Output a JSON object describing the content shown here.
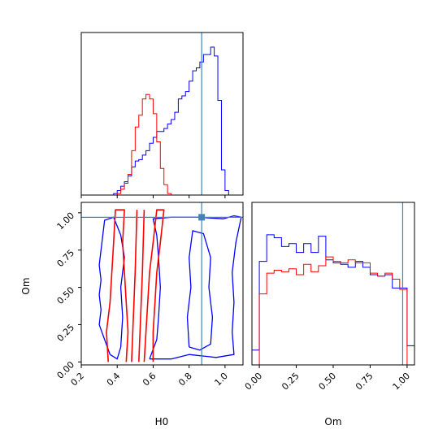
{
  "chart_data": {
    "type": "corner",
    "parameters": [
      "H0",
      "Om"
    ],
    "truth": {
      "H0": 0.87,
      "Om": 0.97
    },
    "colors": {
      "blue": "#0000ff",
      "red": "#ff0000",
      "truth": "#4682b4"
    },
    "series": [
      {
        "color": "blue"
      },
      {
        "color": "red"
      }
    ],
    "panels": [
      {
        "id": "hist-H0",
        "type": "histogram",
        "xlim": [
          0.2,
          1.1
        ],
        "ylim": [
          0,
          1
        ],
        "x_ticks": [
          0.2,
          0.4,
          0.6,
          0.8,
          1.0
        ],
        "x_tick_labels_visible": false,
        "truth_x": 0.87,
        "bin_edges": [
          0.2,
          0.22,
          0.24,
          0.26,
          0.28,
          0.3,
          0.32,
          0.34,
          0.36,
          0.38,
          0.4,
          0.42,
          0.44,
          0.46,
          0.48,
          0.5,
          0.52,
          0.54,
          0.56,
          0.58,
          0.6,
          0.62,
          0.64,
          0.66,
          0.68,
          0.7,
          0.72,
          0.74,
          0.76,
          0.78,
          0.8,
          0.82,
          0.84,
          0.86,
          0.88,
          0.9,
          0.92,
          0.94,
          0.96,
          0.98,
          1.0,
          1.02,
          1.04,
          1.06,
          1.08,
          1.1
        ],
        "series": [
          {
            "color": "blue",
            "values": [
              0.0,
              0.0,
              0.0,
              0.0,
              0.0,
              0.0,
              0.0,
              0.0,
              0.0,
              0.01,
              0.03,
              0.06,
              0.09,
              0.13,
              0.19,
              0.23,
              0.24,
              0.27,
              0.3,
              0.35,
              0.39,
              0.43,
              0.43,
              0.45,
              0.48,
              0.51,
              0.56,
              0.65,
              0.67,
              0.7,
              0.77,
              0.84,
              0.86,
              0.9,
              0.95,
              0.95,
              1.0,
              0.94,
              0.64,
              0.17,
              0.03,
              0.0,
              0.0,
              0.0,
              0.0
            ]
          },
          {
            "color": "red",
            "values": [
              0.0,
              0.0,
              0.0,
              0.0,
              0.0,
              0.0,
              0.0,
              0.0,
              0.0,
              0.0,
              0.01,
              0.04,
              0.08,
              0.14,
              0.3,
              0.46,
              0.54,
              0.65,
              0.68,
              0.65,
              0.55,
              0.36,
              0.18,
              0.07,
              0.01,
              0.0,
              0.0,
              0.0,
              0.0,
              0.0,
              0.0,
              0.0,
              0.0,
              0.0,
              0.0,
              0.0,
              0.0,
              0.0,
              0.0,
              0.0,
              0.0,
              0.0,
              0.0,
              0.0,
              0.0
            ]
          }
        ]
      },
      {
        "id": "hist-Om",
        "type": "histogram",
        "xlim": [
          -0.05,
          1.05
        ],
        "ylim": [
          0,
          1
        ],
        "x_ticks": [
          0.0,
          0.25,
          0.5,
          0.75,
          1.0
        ],
        "x_tick_labels": [
          "0.00",
          "0.25",
          "0.50",
          "0.75",
          "1.00"
        ],
        "xlabel": "Om",
        "truth_x": 0.97,
        "bin_edges": [
          -0.05,
          -0.0,
          0.05,
          0.1,
          0.15,
          0.2,
          0.25,
          0.3,
          0.35,
          0.4,
          0.45,
          0.5,
          0.55,
          0.6,
          0.65,
          0.7,
          0.75,
          0.8,
          0.85,
          0.9,
          0.95,
          1.0,
          1.05
        ],
        "series": [
          {
            "color": "blue",
            "values": [
              0.1,
              0.7,
              0.88,
              0.86,
              0.8,
              0.82,
              0.76,
              0.82,
              0.76,
              0.87,
              0.71,
              0.69,
              0.68,
              0.66,
              0.7,
              0.66,
              0.61,
              0.6,
              0.61,
              0.52,
              0.52,
              0.13
            ]
          },
          {
            "color": "red",
            "values": [
              0.0,
              0.48,
              0.62,
              0.64,
              0.63,
              0.65,
              0.61,
              0.68,
              0.63,
              0.67,
              0.73,
              0.7,
              0.69,
              0.71,
              0.69,
              0.69,
              0.62,
              0.6,
              0.62,
              0.58,
              0.51,
              0.0
            ]
          }
        ]
      },
      {
        "id": "contour-H0-Om",
        "type": "contour",
        "xlim": [
          0.2,
          1.1
        ],
        "ylim": [
          -0.02,
          1.07
        ],
        "x_ticks": [
          0.2,
          0.4,
          0.6,
          0.8,
          1.0
        ],
        "x_tick_labels": [
          "0.2",
          "0.4",
          "0.6",
          "0.8",
          "1.0"
        ],
        "y_ticks": [
          0.0,
          0.25,
          0.5,
          0.75,
          1.0
        ],
        "y_tick_labels": [
          "0.00",
          "0.25",
          "0.50",
          "0.75",
          "1.00"
        ],
        "xlabel": "H0",
        "ylabel": "Om",
        "truth_point": [
          0.87,
          0.97
        ],
        "contours": [
          {
            "color": "blue",
            "points": [
              [
                0.36,
                0.05
              ],
              [
                0.33,
                0.15
              ],
              [
                0.3,
                0.25
              ],
              [
                0.31,
                0.35
              ],
              [
                0.3,
                0.45
              ],
              [
                0.31,
                0.55
              ],
              [
                0.3,
                0.65
              ],
              [
                0.31,
                0.75
              ],
              [
                0.32,
                0.85
              ],
              [
                0.33,
                0.95
              ],
              [
                0.38,
                0.97
              ],
              [
                0.42,
                0.85
              ],
              [
                0.44,
                0.7
              ],
              [
                0.42,
                0.5
              ],
              [
                0.43,
                0.3
              ],
              [
                0.42,
                0.1
              ],
              [
                0.4,
                0.02
              ],
              [
                0.36,
                0.05
              ]
            ]
          },
          {
            "color": "blue",
            "points": [
              [
                0.58,
                0.02
              ],
              [
                0.62,
                0.15
              ],
              [
                0.63,
                0.3
              ],
              [
                0.64,
                0.5
              ],
              [
                0.63,
                0.7
              ],
              [
                0.62,
                0.85
              ],
              [
                0.6,
                0.96
              ],
              [
                0.7,
                0.97
              ],
              [
                0.85,
                0.97
              ],
              [
                0.99,
                0.96
              ],
              [
                1.05,
                0.98
              ],
              [
                1.09,
                0.97
              ],
              [
                1.06,
                0.8
              ],
              [
                1.04,
                0.6
              ],
              [
                1.05,
                0.4
              ],
              [
                1.04,
                0.2
              ],
              [
                1.05,
                0.05
              ],
              [
                0.95,
                0.03
              ],
              [
                0.8,
                0.05
              ],
              [
                0.7,
                0.02
              ],
              [
                0.58,
                0.02
              ]
            ]
          },
          {
            "color": "blue",
            "points": [
              [
                0.8,
                0.1
              ],
              [
                0.79,
                0.3
              ],
              [
                0.81,
                0.5
              ],
              [
                0.8,
                0.7
              ],
              [
                0.82,
                0.88
              ],
              [
                0.88,
                0.86
              ],
              [
                0.92,
                0.7
              ],
              [
                0.91,
                0.5
              ],
              [
                0.93,
                0.3
              ],
              [
                0.92,
                0.12
              ],
              [
                0.86,
                0.08
              ],
              [
                0.8,
                0.1
              ]
            ]
          },
          {
            "color": "red",
            "points": [
              [
                0.35,
                0.0
              ],
              [
                0.34,
                0.2
              ],
              [
                0.36,
                0.4
              ],
              [
                0.37,
                0.6
              ],
              [
                0.38,
                0.8
              ],
              [
                0.39,
                1.02
              ],
              [
                0.44,
                1.02
              ],
              [
                0.43,
                0.8
              ],
              [
                0.44,
                0.6
              ],
              [
                0.45,
                0.4
              ],
              [
                0.46,
                0.2
              ],
              [
                0.45,
                0.0
              ]
            ]
          },
          {
            "color": "red",
            "points": [
              [
                0.55,
                0.0
              ],
              [
                0.56,
                0.2
              ],
              [
                0.57,
                0.4
              ],
              [
                0.58,
                0.6
              ],
              [
                0.6,
                0.8
              ],
              [
                0.62,
                1.02
              ],
              [
                0.66,
                1.02
              ],
              [
                0.64,
                0.8
              ],
              [
                0.62,
                0.6
              ],
              [
                0.61,
                0.4
              ],
              [
                0.6,
                0.2
              ],
              [
                0.6,
                0.0
              ]
            ]
          },
          {
            "color": "red",
            "points": [
              [
                0.48,
                0.0
              ],
              [
                0.49,
                0.3
              ],
              [
                0.5,
                0.6
              ],
              [
                0.51,
                1.02
              ]
            ]
          },
          {
            "color": "red",
            "points": [
              [
                0.52,
                0.0
              ],
              [
                0.53,
                0.3
              ],
              [
                0.54,
                0.6
              ],
              [
                0.55,
                1.02
              ]
            ]
          }
        ]
      }
    ]
  }
}
